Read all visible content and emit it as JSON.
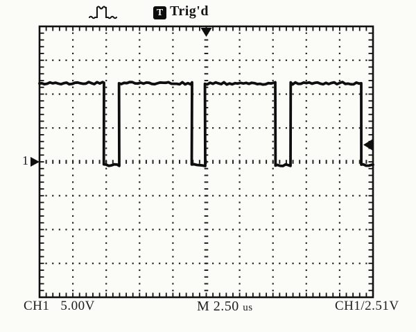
{
  "header": {
    "trig_badge": "T",
    "trig_status": "Trig'd"
  },
  "markers": {
    "channel_ref": "1"
  },
  "readouts": {
    "ch1_label": "CH1",
    "ch1_scale": "5.00V",
    "timebase_label": "M",
    "timebase_value": "2.50",
    "timebase_unit": "us",
    "trigger_readout": "CH1/2.51V"
  },
  "colors": {
    "trace": "#0e0e0e",
    "graticule": "#222222",
    "border": "#111111",
    "background": "#fbfbf8",
    "text": "#1d1d1d"
  },
  "chart_data": {
    "type": "line",
    "title": "Oscilloscope capture: CH1 square wave, Trig'd",
    "x_unit": "us",
    "y_unit": "V",
    "time_per_div_us": 2.5,
    "volts_per_div": 5.0,
    "divisions": {
      "horizontal": 10,
      "vertical": 8
    },
    "time_range_us": [
      0,
      25
    ],
    "volts_range": [
      -20,
      20
    ],
    "trigger_level_v": 2.51,
    "trigger_position_us": 12.5,
    "ch1_reference_v": 0,
    "high_level_v": 11.6,
    "low_level_v": -0.5,
    "segments_t0_t1_volts": [
      [
        0.0,
        4.82,
        11.6
      ],
      [
        4.82,
        5.96,
        -0.5
      ],
      [
        5.96,
        11.41,
        11.6
      ],
      [
        11.41,
        12.4,
        -0.5
      ],
      [
        12.4,
        17.69,
        11.6
      ],
      [
        17.69,
        18.83,
        -0.5
      ],
      [
        18.83,
        24.12,
        11.6
      ],
      [
        24.12,
        25.0,
        -0.5
      ]
    ]
  }
}
